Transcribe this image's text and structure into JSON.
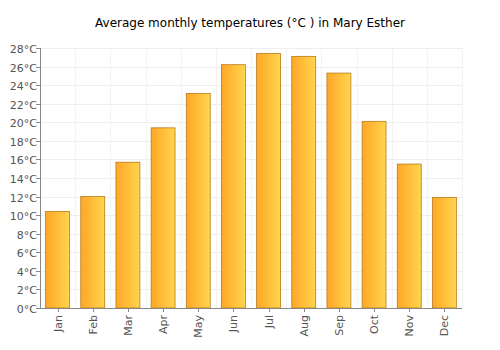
{
  "chart_data": {
    "type": "bar",
    "title": "Average monthly temperatures (°C ) in Mary Esther",
    "categories": [
      "Jan",
      "Feb",
      "Mar",
      "Apr",
      "May",
      "Jun",
      "Jul",
      "Aug",
      "Sep",
      "Oct",
      "Nov",
      "Dec"
    ],
    "values": [
      10.4,
      12.0,
      15.7,
      19.4,
      23.1,
      26.2,
      27.4,
      27.1,
      25.3,
      20.1,
      15.5,
      11.9
    ],
    "color": "#ffa726",
    "ylim": [
      0,
      28
    ],
    "yticks": [
      {
        "value": 0,
        "label": "0°C"
      },
      {
        "value": 2,
        "label": "2°C"
      },
      {
        "value": 4,
        "label": "4°C"
      },
      {
        "value": 6,
        "label": "6°C"
      },
      {
        "value": 8,
        "label": "8°C"
      },
      {
        "value": 10,
        "label": "10°C"
      },
      {
        "value": 12,
        "label": "12°C"
      },
      {
        "value": 14,
        "label": "14°C"
      },
      {
        "value": 16,
        "label": "16°C"
      },
      {
        "value": 18,
        "label": "18°C"
      },
      {
        "value": 20,
        "label": "20°C"
      },
      {
        "value": 22,
        "label": "22°C"
      },
      {
        "value": 24,
        "label": "24°C"
      },
      {
        "value": 26,
        "label": "26°C"
      },
      {
        "value": 28,
        "label": "28°C"
      }
    ],
    "grid": true
  }
}
